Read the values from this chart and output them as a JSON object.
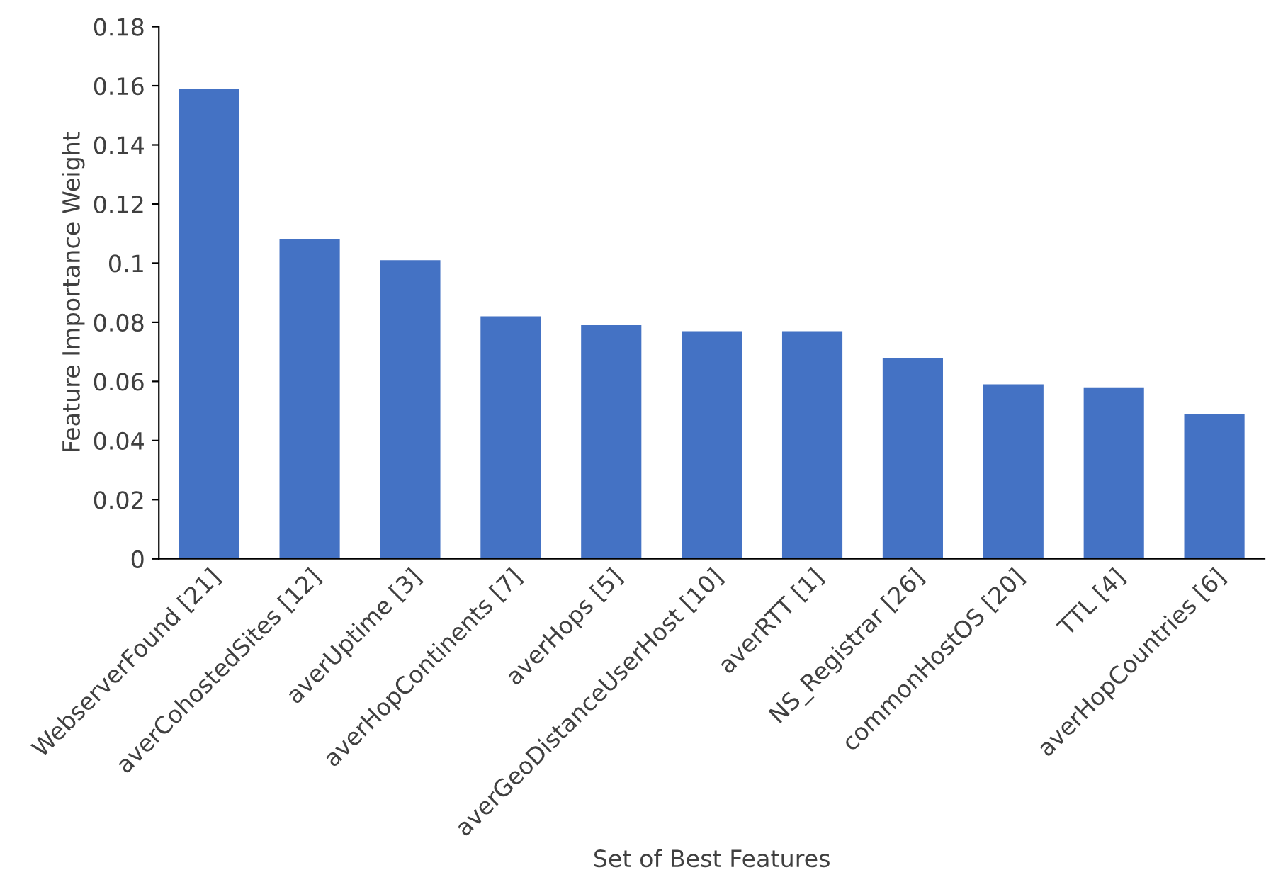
{
  "chart_data": {
    "type": "bar",
    "xlabel": "Set of Best Features",
    "ylabel": "Feature Importance Weight",
    "categories": [
      "WebserverFound [21]",
      "averCohostedSites [12]",
      "averUptime [3]",
      "averHopContinents [7]",
      "averHops [5]",
      "averGeoDistanceUserHost [10]",
      "averRTT [1]",
      "NS_Registrar [26]",
      "commonHostOS [20]",
      "TTL [4]",
      "averHopCountries [6]"
    ],
    "values": [
      0.159,
      0.108,
      0.101,
      0.082,
      0.079,
      0.077,
      0.077,
      0.068,
      0.059,
      0.058,
      0.049
    ],
    "color": "#4472c4",
    "ylim": [
      0,
      0.18
    ],
    "yticks": [
      0,
      0.02,
      0.04,
      0.06,
      0.08,
      0.1,
      0.12,
      0.14,
      0.16,
      0.18
    ],
    "grid": false,
    "legend": false
  }
}
